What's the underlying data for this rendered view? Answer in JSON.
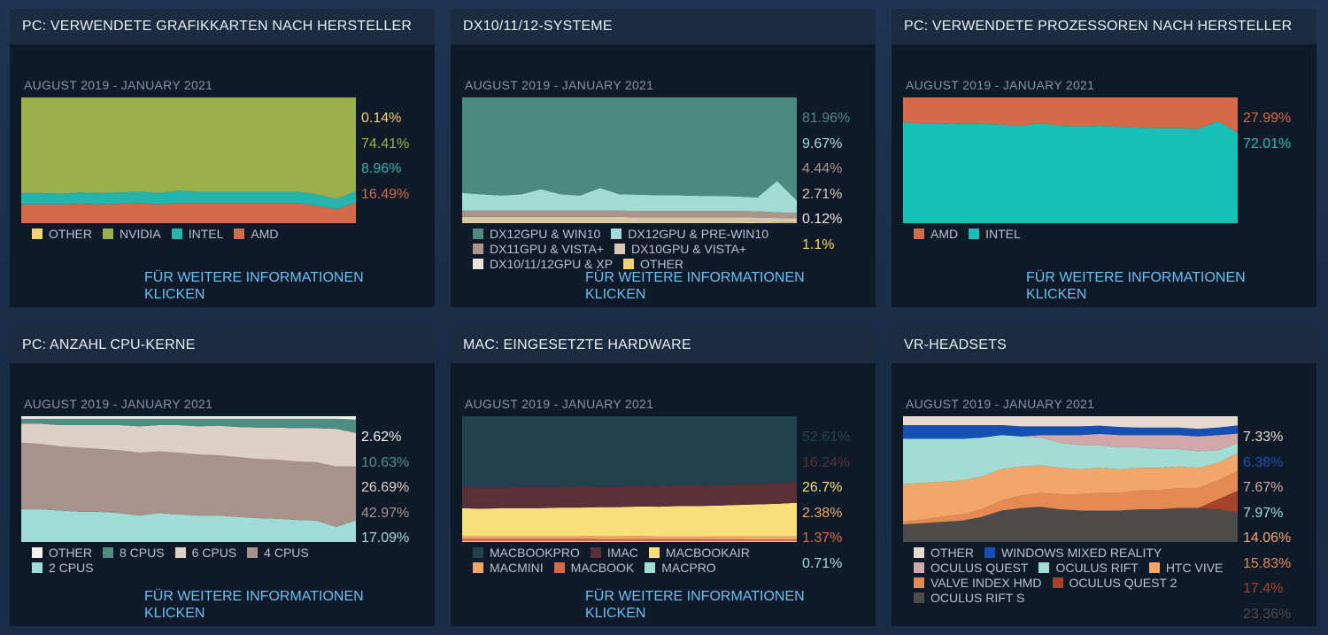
{
  "chart_data": [
    {
      "id": "gpu",
      "type": "area",
      "title": "PC: VERWENDETE GRAFIKKARTEN NACH HERSTELLER",
      "subtitle": "AUGUST 2019 - JANUARY 2021",
      "xlabel": "",
      "ylabel": "",
      "ylim": [
        0,
        100
      ],
      "x": [
        0,
        1,
        2,
        3,
        4,
        5,
        6,
        7,
        8,
        9,
        10,
        11,
        12,
        13,
        14,
        15,
        16,
        17
      ],
      "series": [
        {
          "name": "AMD",
          "color": "#d56a4a",
          "values": [
            15,
            15,
            15,
            15.5,
            15,
            15.5,
            16,
            15,
            16,
            16,
            16,
            16,
            16,
            16,
            16,
            14,
            11,
            16.49
          ],
          "label": "16.49%"
        },
        {
          "name": "INTEL",
          "color": "#23b5ad",
          "values": [
            9,
            9,
            8.5,
            9,
            9,
            9,
            9,
            9,
            10,
            9,
            9,
            9,
            9,
            9,
            9,
            9,
            8,
            8.96
          ],
          "label": "8.96%"
        },
        {
          "name": "NVIDIA",
          "color": "#9bb04c",
          "values": [
            75.9,
            75.9,
            76.4,
            75.4,
            75.9,
            75.4,
            74.9,
            75.9,
            73.9,
            74.9,
            74.9,
            74.9,
            74.9,
            74.9,
            74.9,
            76.9,
            80.9,
            74.41
          ],
          "label": "74.41%"
        },
        {
          "name": "OTHER",
          "color": "#f1d470",
          "values": [
            0.1,
            0.1,
            0.1,
            0.1,
            0.1,
            0.1,
            0.1,
            0.1,
            0.1,
            0.1,
            0.1,
            0.1,
            0.1,
            0.1,
            0.1,
            0.1,
            0.1,
            0.14
          ],
          "label": "0.14%"
        }
      ],
      "legend_order": [
        "OTHER",
        "NVIDIA",
        "INTEL",
        "AMD"
      ],
      "label_order": [
        "OTHER",
        "NVIDIA",
        "INTEL",
        "AMD"
      ],
      "link": "FÜR WEITERE INFORMATIONEN KLICKEN"
    },
    {
      "id": "dx",
      "type": "area",
      "title": "DX10/11/12-SYSTEME",
      "subtitle": "AUGUST 2019 - JANUARY 2021",
      "xlabel": "",
      "ylabel": "",
      "ylim": [
        0,
        100
      ],
      "x": [
        0,
        1,
        2,
        3,
        4,
        5,
        6,
        7,
        8,
        9,
        10,
        11,
        12,
        13,
        14,
        15,
        16,
        17
      ],
      "series": [
        {
          "name": "DX10/11/12GPU & XP",
          "color": "#ece3d6",
          "values": [
            0.5,
            0.5,
            0.5,
            0.5,
            0.5,
            0.5,
            0.5,
            0.5,
            0.5,
            0.5,
            0.5,
            0.5,
            0.5,
            0.5,
            0.5,
            0.3,
            0.2,
            0.12
          ],
          "label": "0.12%"
        },
        {
          "name": "OTHER",
          "color": "#f1d470",
          "values": [
            1.5,
            1.5,
            1.5,
            1.5,
            1.5,
            1.5,
            1.5,
            1.5,
            1.5,
            1.2,
            1.2,
            1.2,
            1.2,
            1.2,
            1.2,
            1.2,
            1.1,
            1.1
          ],
          "label": "1.1%"
        },
        {
          "name": "DX10GPU & VISTA+",
          "color": "#d7c7b4",
          "values": [
            3,
            3,
            3,
            3,
            3,
            3,
            3,
            3,
            3,
            3,
            3,
            3,
            3,
            3,
            3,
            3,
            2.8,
            2.71
          ],
          "label": "2.71%"
        },
        {
          "name": "DX11GPU & VISTA+",
          "color": "#ad9488",
          "values": [
            5,
            5,
            5,
            5,
            5,
            5,
            5,
            5,
            5,
            5,
            5,
            5,
            5,
            5,
            5,
            5,
            4.5,
            4.44
          ],
          "label": "4.44%"
        },
        {
          "name": "DX12GPU & PRE-WIN10",
          "color": "#a2ddd4",
          "values": [
            14,
            13,
            12,
            13,
            17,
            13,
            12,
            18,
            13,
            13,
            12.5,
            12.5,
            12,
            12,
            11.5,
            11,
            25,
            9.67
          ],
          "label": "9.67%"
        },
        {
          "name": "DX12GPU & WIN10",
          "color": "#4c8a80",
          "values": [
            76,
            77,
            78,
            77,
            73,
            77,
            78,
            72,
            77,
            77.3,
            77.8,
            77.8,
            78.3,
            78.3,
            78.8,
            79.5,
            66.4,
            81.96
          ],
          "label": "81.96%"
        }
      ],
      "legend_order": [
        "DX12GPU & WIN10",
        "DX12GPU & PRE-WIN10",
        "DX11GPU & VISTA+",
        "DX10GPU & VISTA+",
        "DX10/11/12GPU & XP",
        "OTHER"
      ],
      "label_order": [
        "DX12GPU & WIN10",
        "DX12GPU & PRE-WIN10",
        "DX11GPU & VISTA+",
        "DX10GPU & VISTA+",
        "DX10/11/12GPU & XP",
        "OTHER"
      ],
      "link": "FÜR WEITERE INFORMATIONEN KLICKEN"
    },
    {
      "id": "cpu",
      "type": "area",
      "title": "PC: VERWENDETE PROZESSOREN NACH HERSTELLER",
      "subtitle": "AUGUST 2019 - JANUARY 2021",
      "xlabel": "",
      "ylabel": "",
      "ylim": [
        0,
        100
      ],
      "x": [
        0,
        1,
        2,
        3,
        4,
        5,
        6,
        7,
        8,
        9,
        10,
        11,
        12,
        13,
        14,
        15,
        16,
        17
      ],
      "series": [
        {
          "name": "INTEL",
          "color": "#15c1b7",
          "values": [
            80,
            79.5,
            79.5,
            79,
            79,
            78.5,
            77.5,
            79.5,
            77.5,
            77,
            77.5,
            76.5,
            76,
            75.5,
            75.5,
            75,
            81,
            72.01
          ],
          "label": "72.01%"
        },
        {
          "name": "AMD",
          "color": "#d56a4a",
          "values": [
            20,
            20.5,
            20.5,
            21,
            21,
            21.5,
            22.5,
            20.5,
            22.5,
            23,
            22.5,
            23.5,
            24,
            24.5,
            24.5,
            25,
            19,
            27.99
          ],
          "label": "27.99%"
        }
      ],
      "legend_order": [
        "AMD",
        "INTEL"
      ],
      "label_order": [
        "AMD",
        "INTEL"
      ],
      "link": "FÜR WEITERE INFORMATIONEN KLICKEN"
    },
    {
      "id": "cores",
      "type": "area",
      "title": "PC: ANZAHL CPU-KERNE",
      "subtitle": "AUGUST 2019 - JANUARY 2021",
      "xlabel": "",
      "ylabel": "",
      "ylim": [
        0,
        100
      ],
      "x": [
        0,
        1,
        2,
        3,
        4,
        5,
        6,
        7,
        8,
        9,
        10,
        11,
        12,
        13,
        14,
        15,
        16,
        17
      ],
      "series": [
        {
          "name": "2 CPUS",
          "color": "#9fdcd8",
          "values": [
            26,
            26,
            25,
            24,
            24,
            23,
            21,
            23,
            22,
            21,
            21,
            20,
            19,
            18.5,
            17.5,
            17,
            12,
            17.09
          ],
          "label": "17.09%"
        },
        {
          "name": "4 CPUS",
          "color": "#a8928a",
          "values": [
            53,
            52,
            51,
            51,
            50,
            50,
            50,
            49,
            49,
            48.5,
            48,
            47.5,
            47,
            47,
            46.5,
            46.5,
            48,
            42.97
          ],
          "label": "42.97%"
        },
        {
          "name": "6 CPUS",
          "color": "#dcd1c4",
          "values": [
            15,
            16,
            17,
            18,
            19,
            20,
            21,
            21,
            22,
            22.5,
            23.5,
            24,
            25,
            25.5,
            26.5,
            27,
            30,
            26.69
          ],
          "label": "26.69%"
        },
        {
          "name": "8 CPUS",
          "color": "#4f8d83",
          "values": [
            4,
            4,
            5,
            5,
            5,
            5,
            6,
            5,
            5,
            6,
            5.5,
            6.5,
            7,
            7,
            7.5,
            7.5,
            8,
            10.63
          ],
          "label": "10.63%"
        },
        {
          "name": "OTHER",
          "color": "#f4f1ec",
          "values": [
            2,
            2,
            2,
            2,
            2,
            2,
            2,
            2,
            2,
            2,
            2,
            2,
            2,
            2,
            2,
            2,
            2,
            2.62
          ],
          "label": "2.62%"
        }
      ],
      "legend_order": [
        "OTHER",
        "8 CPUS",
        "6 CPUS",
        "4 CPUS",
        "2 CPUS"
      ],
      "label_order": [
        "OTHER",
        "8 CPUS",
        "6 CPUS",
        "4 CPUS",
        "2 CPUS"
      ],
      "link": "FÜR WEITERE INFORMATIONEN KLICKEN"
    },
    {
      "id": "mac",
      "type": "area",
      "title": "MAC: EINGESETZTE HARDWARE",
      "subtitle": "AUGUST 2019 - JANUARY 2021",
      "xlabel": "",
      "ylabel": "",
      "ylim": [
        0,
        100
      ],
      "x": [
        0,
        1,
        2,
        3,
        4,
        5,
        6,
        7,
        8,
        9,
        10,
        11,
        12,
        13,
        14,
        15,
        16,
        17
      ],
      "series": [
        {
          "name": "MACPRO",
          "color": "#a2ddd4",
          "values": [
            0.7,
            0.7,
            0.7,
            0.7,
            0.7,
            0.7,
            0.7,
            0.7,
            0.7,
            0.7,
            0.7,
            0.7,
            0.7,
            0.7,
            0.7,
            0.7,
            0.7,
            0.71
          ],
          "label": "0.71%"
        },
        {
          "name": "MACBOOK",
          "color": "#d56a4a",
          "values": [
            2,
            2,
            2,
            2,
            2,
            2,
            2,
            1.8,
            1.8,
            1.8,
            1.6,
            1.6,
            1.6,
            1.5,
            1.5,
            1.4,
            1.4,
            1.37
          ],
          "label": "1.37%"
        },
        {
          "name": "MACMINI",
          "color": "#f0a869",
          "values": [
            2.2,
            2.2,
            2.2,
            2.2,
            2.2,
            2.2,
            2.2,
            2.2,
            2.2,
            2.3,
            2.3,
            2.3,
            2.3,
            2.3,
            2.3,
            2.3,
            2.3,
            2.38
          ],
          "label": "2.38%"
        },
        {
          "name": "MACBOOKAIR",
          "color": "#f8df7a",
          "values": [
            22,
            21.5,
            22,
            22,
            22,
            22.5,
            22.5,
            23,
            23,
            23.5,
            23.5,
            24,
            24,
            24.5,
            25,
            25.5,
            26,
            26.7
          ],
          "label": "26.7%"
        },
        {
          "name": "IMAC",
          "color": "#5a2f35",
          "values": [
            17,
            17,
            16.5,
            17,
            17,
            16.5,
            17,
            16.5,
            16.5,
            16.5,
            16.5,
            16.5,
            16.5,
            16.5,
            16.5,
            16.5,
            16.5,
            16.24
          ],
          "label": "16.24%"
        },
        {
          "name": "MACBOOKPRO",
          "color": "#22424f",
          "values": [
            56.1,
            56.6,
            56.6,
            56.1,
            56.1,
            56.1,
            55.6,
            55.8,
            55.8,
            55.2,
            55.4,
            54.9,
            54.9,
            54.5,
            54,
            53.6,
            53.1,
            52.61
          ],
          "label": "52.61%"
        }
      ],
      "legend_order": [
        "MACBOOKPRO",
        "IMAC",
        "MACBOOKAIR",
        "MACMINI",
        "MACBOOK",
        "MACPRO"
      ],
      "label_order": [
        "MACBOOKPRO",
        "IMAC",
        "MACBOOKAIR",
        "MACMINI",
        "MACBOOK",
        "MACPRO"
      ],
      "link": "FÜR WEITERE INFORMATIONEN KLICKEN"
    },
    {
      "id": "vr",
      "type": "area",
      "title": "VR-HEADSETS",
      "subtitle": "AUGUST 2019 - JANUARY 2021",
      "xlabel": "",
      "ylabel": "",
      "ylim": [
        0,
        100
      ],
      "x": [
        0,
        1,
        2,
        3,
        4,
        5,
        6,
        7,
        8,
        9,
        10,
        11,
        12,
        13,
        14,
        15,
        16,
        17
      ],
      "series": [
        {
          "name": "OCULUS RIFT S",
          "color": "#4d4a4a",
          "values": [
            14,
            15,
            16,
            17,
            20,
            25,
            27,
            28,
            26,
            25,
            25,
            25,
            26,
            26,
            27,
            27,
            26,
            23.36
          ],
          "label": "23.36%"
        },
        {
          "name": "OCULUS QUEST 2",
          "color": "#a4432a",
          "values": [
            0,
            0,
            0,
            0,
            0,
            0,
            0,
            0,
            0,
            0,
            0,
            0,
            0,
            0,
            0,
            0,
            8,
            17.4
          ],
          "label": "17.4%"
        },
        {
          "name": "VALVE INDEX HMD",
          "color": "#e58a52",
          "values": [
            2,
            3,
            4,
            5,
            6,
            8,
            10,
            11,
            12,
            13,
            14,
            14,
            15,
            15,
            16,
            16,
            15,
            15.83
          ],
          "label": "15.83%"
        },
        {
          "name": "HTC VIVE",
          "color": "#f3a66a",
          "values": [
            30,
            29,
            28,
            27,
            26,
            25,
            23,
            22,
            21,
            20,
            20,
            19,
            18,
            18,
            17,
            16,
            14,
            14.06
          ],
          "label": "14.06%"
        },
        {
          "name": "OCULUS RIFT",
          "color": "#a2ddd4",
          "values": [
            36,
            35,
            34,
            33,
            31,
            27,
            24,
            22,
            20,
            19,
            18,
            17,
            16,
            15,
            14,
            13,
            10,
            7.97
          ],
          "label": "7.97%"
        },
        {
          "name": "OCULUS QUEST",
          "color": "#d2a7aa",
          "values": [
            0,
            0,
            0,
            0,
            0,
            0,
            0,
            2,
            6,
            8,
            9,
            10,
            10,
            11,
            11,
            12,
            12,
            7.67
          ],
          "label": "7.67%"
        },
        {
          "name": "WINDOWS MIXED REALITY",
          "color": "#1450b4",
          "values": [
            11,
            11,
            11,
            11,
            10,
            8,
            8,
            7,
            7,
            7,
            6.5,
            6.5,
            6,
            6,
            6,
            6,
            6,
            6.38
          ],
          "label": "6.38%"
        },
        {
          "name": "OTHER",
          "color": "#e6dace",
          "values": [
            7,
            7,
            7,
            7,
            7,
            7,
            8,
            8,
            8,
            8,
            7.5,
            8.5,
            9,
            9,
            9,
            10,
            9,
            7.33
          ],
          "label": "7.33%"
        }
      ],
      "legend_order": [
        "OTHER",
        "WINDOWS MIXED REALITY",
        "OCULUS QUEST",
        "OCULUS RIFT",
        "HTC VIVE",
        "VALVE INDEX HMD",
        "OCULUS QUEST 2",
        "OCULUS RIFT S"
      ],
      "label_order": [
        "OTHER",
        "WINDOWS MIXED REALITY",
        "OCULUS QUEST",
        "OCULUS RIFT",
        "HTC VIVE",
        "VALVE INDEX HMD",
        "OCULUS QUEST 2",
        "OCULUS RIFT S"
      ],
      "link": ""
    }
  ]
}
